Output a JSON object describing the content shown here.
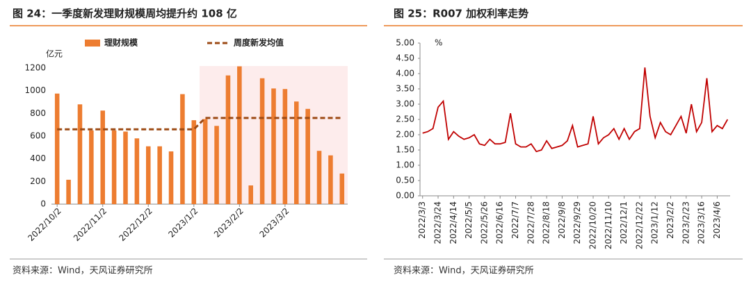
{
  "chart_data": [
    {
      "type": "bar",
      "title": "图 24：一季度新发理财规模周均提升约 108 亿",
      "y_label": "亿元",
      "source": "资料来源：Wind，天风证券研究所",
      "categories": [
        "2022/10/2",
        null,
        null,
        null,
        "2022/11/2",
        null,
        null,
        null,
        "2022/12/2",
        null,
        null,
        null,
        "2023/1/2",
        null,
        null,
        null,
        "2023/2/2",
        null,
        null,
        null,
        "2023/3/2",
        null,
        null,
        null,
        null,
        null
      ],
      "series": [
        {
          "name": "理财规模",
          "type": "bar",
          "color": "#ed7d31",
          "values": [
            975,
            215,
            880,
            650,
            825,
            650,
            640,
            580,
            510,
            510,
            465,
            970,
            740,
            750,
            690,
            1135,
            1215,
            165,
            1110,
            1020,
            1015,
            905,
            840,
            470,
            430,
            270
          ]
        },
        {
          "name": "周度新发均值",
          "type": "line",
          "dashed": true,
          "color": "#9c4a14",
          "values": [
            660,
            660,
            660,
            660,
            660,
            660,
            660,
            660,
            660,
            660,
            660,
            660,
            660,
            760,
            760,
            760,
            760,
            760,
            760,
            760,
            760,
            760,
            760,
            760,
            760,
            760
          ]
        }
      ],
      "ylim": [
        0,
        1200
      ],
      "yticks": [
        0,
        200,
        400,
        600,
        800,
        1000,
        1200
      ],
      "grid": false,
      "legend": "top"
    },
    {
      "type": "line",
      "title": "图 25：R007 加权利率走势",
      "y_label": "%",
      "source": "资料来源：Wind，天风证券研究所",
      "categories": [
        "2022/3/3",
        null,
        null,
        "2022/3/24",
        null,
        null,
        "2022/4/14",
        null,
        null,
        "2022/5/5",
        null,
        null,
        "2022/5/26",
        null,
        null,
        "2022/6/16",
        null,
        null,
        "2022/7/7",
        null,
        null,
        "2022/7/28",
        null,
        null,
        "2022/8/18",
        null,
        null,
        "2022/9/8",
        null,
        null,
        "2022/9/29",
        null,
        null,
        "2022/10/20",
        null,
        null,
        "2022/11/10",
        null,
        null,
        "2022/12/1",
        null,
        null,
        "2022/12/22",
        null,
        null,
        "2023/1/12",
        null,
        null,
        "2023/2/2",
        null,
        null,
        "2023/2/23",
        null,
        null,
        "2023/3/16",
        null,
        null,
        "2023/4/6",
        null,
        null
      ],
      "series": [
        {
          "color": "#c00000",
          "values": [
            2.05,
            2.1,
            2.2,
            2.9,
            3.1,
            1.85,
            2.1,
            1.95,
            1.85,
            1.9,
            2.0,
            1.7,
            1.65,
            1.85,
            1.7,
            1.7,
            1.75,
            2.7,
            1.7,
            1.6,
            1.6,
            1.7,
            1.45,
            1.5,
            1.8,
            1.55,
            1.6,
            1.65,
            1.8,
            2.3,
            1.6,
            1.65,
            1.7,
            2.6,
            1.7,
            1.9,
            2.0,
            2.2,
            1.85,
            2.2,
            1.85,
            2.1,
            2.2,
            4.2,
            2.6,
            1.9,
            2.4,
            2.1,
            2.0,
            2.3,
            2.6,
            2.05,
            3.0,
            2.1,
            2.4,
            3.85,
            2.1,
            2.3,
            2.2,
            2.5
          ]
        }
      ],
      "ylim": [
        0,
        5
      ],
      "yticks": [
        {
          "value": 0,
          "label": "0.00"
        },
        {
          "value": 0.5,
          "label": "0.50"
        },
        {
          "value": 1,
          "label": "1.00"
        },
        {
          "value": 1.5,
          "label": "1.50"
        },
        {
          "value": 2,
          "label": "2.00"
        },
        {
          "value": 2.5,
          "label": "2.50"
        },
        {
          "value": 3,
          "label": "3.00"
        },
        {
          "value": 3.5,
          "label": "3.50"
        },
        {
          "value": 4,
          "label": "4.00"
        },
        {
          "value": 4.5,
          "label": "4.50"
        },
        {
          "value": 5,
          "label": "5.00"
        }
      ],
      "grid": false
    }
  ]
}
